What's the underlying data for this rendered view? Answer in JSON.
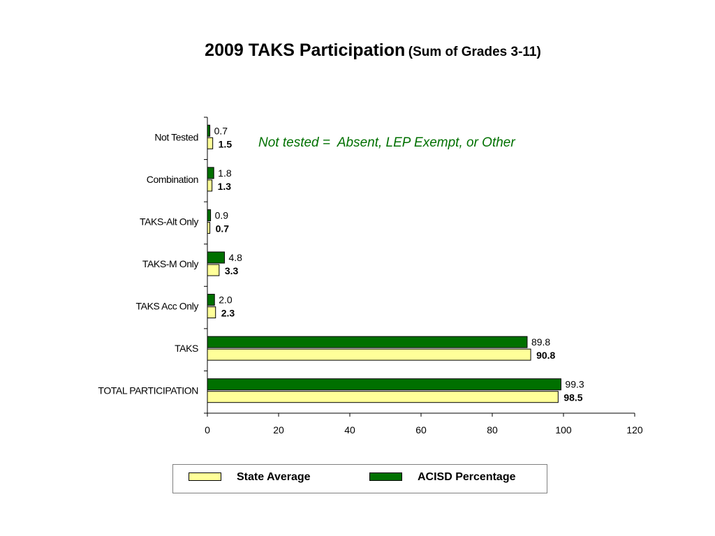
{
  "title": {
    "main": "2009 TAKS Participation",
    "sub": "(Sum of Grades 3-11)"
  },
  "colors": {
    "state": "#ffff99",
    "acisd": "#007000",
    "note": "#007000"
  },
  "chart_data": {
    "type": "bar",
    "orientation": "horizontal",
    "categories": [
      "Not Tested",
      "Combination",
      "TAKS-Alt Only",
      "TAKS-M Only",
      "TAKS Acc Only",
      "TAKS",
      "TOTAL PARTICIPATION"
    ],
    "series": [
      {
        "name": "State Average",
        "values": [
          1.5,
          1.3,
          0.7,
          3.3,
          2.3,
          90.8,
          98.5
        ],
        "labels": [
          "1.5",
          "1.3",
          "0.7",
          "3.3",
          "2.3",
          "90.8",
          "98.5"
        ]
      },
      {
        "name": "ACISD Percentage",
        "values": [
          0.7,
          1.8,
          0.9,
          4.8,
          2.0,
          89.8,
          99.3
        ],
        "labels": [
          "0.7",
          "1.8",
          "0.9",
          "4.8",
          "2.0",
          "89.8",
          "99.3"
        ]
      }
    ],
    "xlim": [
      0,
      120
    ],
    "x_ticks": [
      "0",
      "20",
      "40",
      "60",
      "80",
      "100",
      "120"
    ],
    "annotation": "Not tested =  Absent, LEP Exempt, or Other",
    "legend_position": "bottom",
    "grid": false
  }
}
